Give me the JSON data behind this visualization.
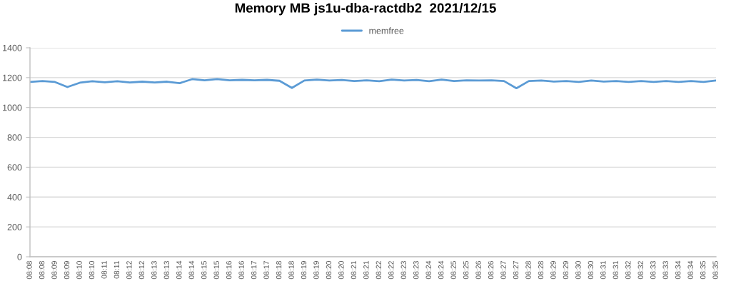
{
  "chart_data": {
    "type": "line",
    "title": "Memory MB js1u-dba-ractdb2  2021/12/15",
    "categories": [
      "08:08",
      "08:08",
      "08:09",
      "08:09",
      "08:10",
      "08:10",
      "08:11",
      "08:11",
      "08:12",
      "08:12",
      "08:13",
      "08:13",
      "08:14",
      "08:14",
      "08:15",
      "08:15",
      "08:16",
      "08:16",
      "08:17",
      "08:17",
      "08:18",
      "08:18",
      "08:19",
      "08:19",
      "08:20",
      "08:20",
      "08:21",
      "08:21",
      "08:22",
      "08:22",
      "08:23",
      "08:23",
      "08:24",
      "08:24",
      "08:25",
      "08:25",
      "08:26",
      "08:26",
      "08:27",
      "08:27",
      "08:28",
      "08:28",
      "08:29",
      "08:29",
      "08:30",
      "08:30",
      "08:31",
      "08:31",
      "08:32",
      "08:32",
      "08:33",
      "08:33",
      "08:34",
      "08:34",
      "08:35",
      "08:35"
    ],
    "series": [
      {
        "name": "memfree",
        "color": "#5b9bd5",
        "values": [
          1171,
          1177,
          1171,
          1137,
          1166,
          1176,
          1169,
          1176,
          1168,
          1173,
          1168,
          1173,
          1163,
          1190,
          1182,
          1190,
          1182,
          1185,
          1182,
          1185,
          1179,
          1131,
          1181,
          1187,
          1181,
          1184,
          1177,
          1182,
          1176,
          1187,
          1181,
          1184,
          1176,
          1187,
          1177,
          1182,
          1181,
          1182,
          1177,
          1129,
          1177,
          1181,
          1174,
          1177,
          1171,
          1181,
          1174,
          1177,
          1171,
          1177,
          1171,
          1177,
          1171,
          1177,
          1171,
          1181
        ]
      }
    ],
    "ylim": [
      0,
      1400
    ],
    "yticks": [
      0,
      200,
      400,
      600,
      800,
      1000,
      1200,
      1400
    ],
    "grid": "y",
    "legend": "top",
    "line_style": "solid"
  }
}
